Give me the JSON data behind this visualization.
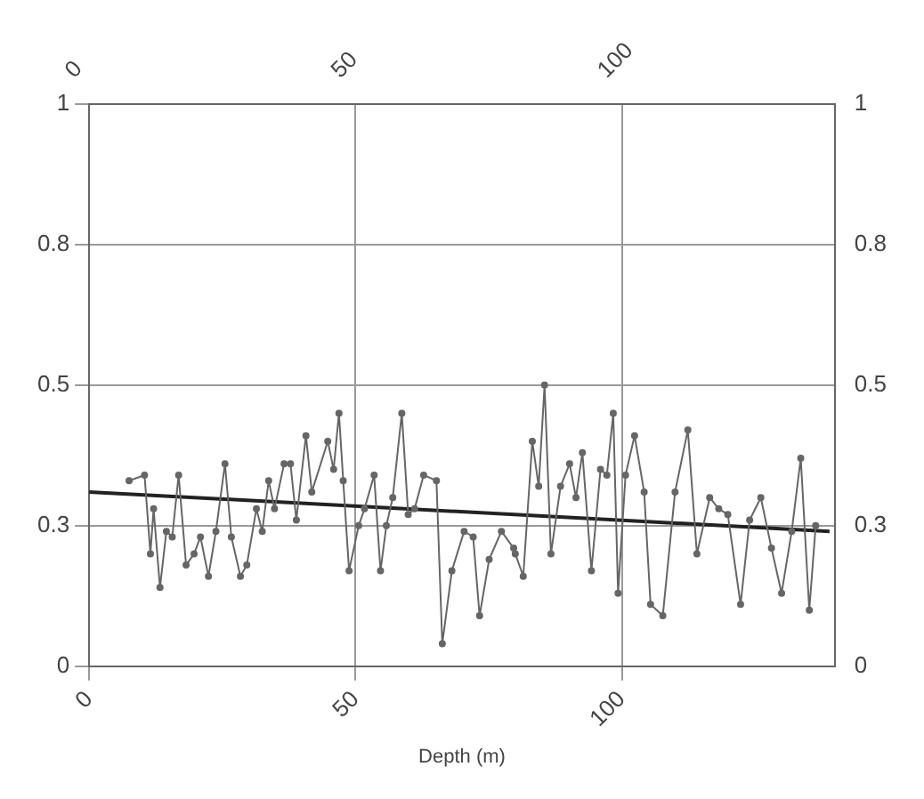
{
  "chart_data": {
    "type": "line",
    "xlabel": "Depth (m)",
    "xlim": [
      0,
      140
    ],
    "xticks": [
      0,
      50,
      100
    ],
    "x2lim": [
      0,
      140
    ],
    "x2ticks": [
      0,
      50,
      100
    ],
    "ylim": [
      0,
      1
    ],
    "yticks": [
      0,
      {
        "value": 0.25,
        "label": "0.3"
      },
      0.5,
      {
        "value": 0.75,
        "label": "0.8"
      },
      1
    ],
    "y2lim": [
      0,
      1
    ],
    "y2ticks": [
      0,
      {
        "value": 0.25,
        "label": "0.3"
      },
      0.5,
      {
        "value": 0.75,
        "label": "0.8"
      },
      1
    ],
    "grid": true,
    "marker": "circle",
    "line_style": "solid",
    "series": [
      {
        "color": "#666666",
        "x": [
          7.5,
          10.4,
          11.5,
          12.1,
          13.3,
          14.5,
          15.6,
          16.8,
          18.2,
          19.7,
          20.9,
          22.4,
          23.8,
          25.5,
          26.7,
          28.4,
          29.6,
          31.4,
          32.5,
          33.7,
          34.8,
          36.6,
          37.8,
          38.9,
          40.7,
          41.8,
          44.8,
          45.9,
          46.9,
          47.7,
          48.8,
          50.6,
          51.7,
          53.5,
          54.7,
          55.8,
          57.0,
          58.7,
          59.9,
          61.1,
          62.8,
          65.2,
          66.3,
          68.1,
          70.4,
          72.1,
          73.3,
          75.1,
          77.4,
          79.7,
          80.0,
          81.5,
          83.2,
          84.4,
          85.5,
          86.7,
          88.5,
          90.2,
          91.4,
          92.6,
          94.3,
          96.0,
          97.2,
          98.4,
          99.3,
          100.7,
          102.4,
          104.2,
          105.4,
          107.7,
          110.0,
          112.4,
          114.1,
          116.5,
          118.2,
          119.9,
          122.3,
          124.0,
          126.1,
          128.1,
          130.0,
          131.9,
          133.6,
          135.2,
          136.4
        ],
        "values": [
          0.33,
          0.34,
          0.2,
          0.28,
          0.14,
          0.24,
          0.23,
          0.34,
          0.18,
          0.2,
          0.23,
          0.16,
          0.24,
          0.36,
          0.23,
          0.16,
          0.18,
          0.28,
          0.24,
          0.33,
          0.28,
          0.36,
          0.36,
          0.26,
          0.41,
          0.31,
          0.4,
          0.35,
          0.45,
          0.33,
          0.17,
          0.25,
          0.28,
          0.34,
          0.17,
          0.25,
          0.3,
          0.45,
          0.27,
          0.28,
          0.34,
          0.33,
          0.04,
          0.17,
          0.24,
          0.23,
          0.09,
          0.19,
          0.24,
          0.21,
          0.2,
          0.16,
          0.4,
          0.32,
          0.5,
          0.2,
          0.32,
          0.36,
          0.3,
          0.38,
          0.17,
          0.35,
          0.34,
          0.45,
          0.13,
          0.34,
          0.41,
          0.31,
          0.11,
          0.09,
          0.31,
          0.42,
          0.2,
          0.3,
          0.28,
          0.27,
          0.11,
          0.26,
          0.3,
          0.21,
          0.13,
          0.24,
          0.37,
          0.1,
          0.25
        ]
      },
      {
        "type": "line",
        "color": "#222222",
        "marker": "none",
        "x": [
          0,
          139
        ],
        "values": [
          0.31,
          0.24
        ]
      }
    ]
  }
}
